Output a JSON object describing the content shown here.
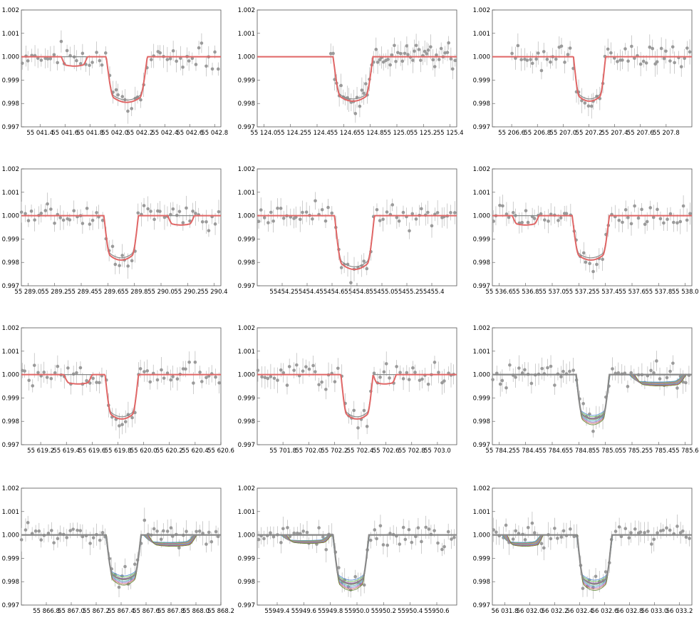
{
  "colors": {
    "data": "#9a9a9a",
    "model_single": "#e06666",
    "baseline": "#888888",
    "multi": [
      "#5b8fd6",
      "#6cbf5a",
      "#b05ab8",
      "#d4a23c",
      "#4fb3b3",
      "#8a6fd1",
      "#c86a6a",
      "#6a8a3c"
    ]
  },
  "chart_data": [
    {
      "type": "scatter",
      "title": "",
      "xlabel": "",
      "ylabel": "",
      "grid": false,
      "xlim": [
        55041.25,
        55042.85
      ],
      "ylim": [
        0.997,
        1.002
      ],
      "xticks": [
        "55 041.4",
        "55 041.6",
        "55 041.8",
        "55 042.0",
        "55 042.2",
        "55 042.4",
        "55 042.6",
        "55 042.8"
      ],
      "yticks": [
        "0.997",
        "0.998",
        "0.999",
        "1.000",
        "1.001",
        "1.002"
      ],
      "transit": {
        "t1": 55041.93,
        "t2": 55042.26,
        "depth": 0.00195
      },
      "secondary": {
        "t1": 55041.57,
        "t2": 55041.78,
        "depth": 0.0004
      },
      "n_models": 1
    },
    {
      "type": "scatter",
      "title": "",
      "xlabel": "",
      "ylabel": "",
      "grid": false,
      "xlim": [
        55123.95,
        55125.45
      ],
      "ylim": [
        0.997,
        1.002
      ],
      "xticks": [
        "55 124.0",
        "55 124.2",
        "55 124.4",
        "55 124.6",
        "55 124.8",
        "55 125.0",
        "55 125.2",
        "55 125.4"
      ],
      "yticks": [
        "0.997",
        "0.998",
        "0.999",
        "1.000",
        "1.001",
        "1.002"
      ],
      "data_xrange": [
        55124.5,
        55125.45
      ],
      "transit": {
        "t1": 55124.52,
        "t2": 55124.82,
        "depth": 0.0019
      },
      "n_models": 1
    },
    {
      "type": "scatter",
      "title": "",
      "xlabel": "",
      "ylabel": "",
      "grid": false,
      "xlim": [
        55206.45,
        55208.0
      ],
      "ylim": [
        0.997,
        1.002
      ],
      "xticks": [
        "55 206.6",
        "55 206.8",
        "55 207.0",
        "55 207.2",
        "55 207.4",
        "55 207.6",
        "55 207.8"
      ],
      "yticks": [
        "0.997",
        "0.998",
        "0.999",
        "1.000",
        "1.001",
        "1.002"
      ],
      "data_xrange": [
        55206.6,
        55208.0
      ],
      "transit": {
        "t1": 55207.08,
        "t2": 55207.33,
        "depth": 0.0019
      },
      "n_models": 1
    },
    {
      "type": "scatter",
      "title": "",
      "xlabel": "",
      "ylabel": "",
      "grid": false,
      "xlim": [
        55288.95,
        55290.45
      ],
      "ylim": [
        0.997,
        1.002
      ],
      "xticks": [
        "55 289.0",
        "55 289.2",
        "55 289.4",
        "55 289.6",
        "55 289.8",
        "55 290.0",
        "55 290.2",
        "55 290.4"
      ],
      "yticks": [
        "0.997",
        "0.998",
        "0.999",
        "1.000",
        "1.001",
        "1.002"
      ],
      "transit": {
        "t1": 55289.57,
        "t2": 55289.83,
        "depth": 0.0019
      },
      "secondary": {
        "t1": 55290.05,
        "t2": 55290.25,
        "depth": 0.0004
      },
      "n_models": 1
    },
    {
      "type": "scatter",
      "title": "",
      "xlabel": "",
      "ylabel": "",
      "grid": false,
      "xlim": [
        55454.0,
        55455.6
      ],
      "ylim": [
        0.997,
        1.002
      ],
      "xticks": [
        "55454.2",
        "55454.4",
        "55454.6",
        "55454.8",
        "55455.0",
        "55455.2",
        "55455.4"
      ],
      "yticks": [
        "0.997",
        "0.998",
        "0.999",
        "1.000",
        "1.001",
        "1.002"
      ],
      "transit": {
        "t1": 55454.62,
        "t2": 55454.94,
        "depth": 0.0023
      },
      "n_models": 1
    },
    {
      "type": "scatter",
      "title": "",
      "xlabel": "",
      "ylabel": "",
      "grid": false,
      "xlim": [
        55536.55,
        55538.05
      ],
      "ylim": [
        0.997,
        1.002
      ],
      "xticks": [
        "55 536.6",
        "55 536.8",
        "55 537.0",
        "55 537.2",
        "55 537.4",
        "55 537.6",
        "55 537.8",
        "55 538.0"
      ],
      "yticks": [
        "0.997",
        "0.998",
        "0.999",
        "1.000",
        "1.001",
        "1.002"
      ],
      "transit": {
        "t1": 55537.15,
        "t2": 55537.43,
        "depth": 0.0019
      },
      "secondary": {
        "t1": 55536.7,
        "t2": 55536.9,
        "depth": 0.0004
      },
      "n_models": 1
    },
    {
      "type": "scatter",
      "title": "",
      "xlabel": "",
      "ylabel": "",
      "grid": false,
      "xlim": [
        55619.05,
        55620.6
      ],
      "ylim": [
        0.997,
        1.002
      ],
      "xticks": [
        "55 619.2",
        "55 619.4",
        "55 619.6",
        "55 619.8",
        "55 620.0",
        "55 620.2",
        "55 620.4",
        "55 620.6"
      ],
      "yticks": [
        "0.997",
        "0.998",
        "0.999",
        "1.000",
        "1.001",
        "1.002"
      ],
      "transit": {
        "t1": 55619.7,
        "t2": 55619.96,
        "depth": 0.0019
      },
      "secondary": {
        "t1": 55619.38,
        "t2": 55619.6,
        "depth": 0.0004
      },
      "n_models": 1
    },
    {
      "type": "scatter",
      "title": "",
      "xlabel": "",
      "ylabel": "",
      "grid": false,
      "xlim": [
        55701.6,
        55703.15
      ],
      "ylim": [
        0.997,
        1.002
      ],
      "xticks": [
        "55 701.8",
        "55 702.0",
        "55 702.2",
        "55 702.4",
        "55 702.6",
        "55 702.8",
        "55 703.0"
      ],
      "yticks": [
        "0.997",
        "0.998",
        "0.999",
        "1.000",
        "1.001",
        "1.002"
      ],
      "transit": {
        "t1": 55702.25,
        "t2": 55702.5,
        "depth": 0.0019
      },
      "secondary": {
        "t1": 55702.5,
        "t2": 55702.68,
        "depth": 0.0004
      },
      "n_models": 1
    },
    {
      "type": "scatter",
      "title": "",
      "xlabel": "",
      "ylabel": "",
      "grid": false,
      "xlim": [
        55784.15,
        55785.65
      ],
      "ylim": [
        0.997,
        1.002
      ],
      "xticks": [
        "55 784.2",
        "55 784.4",
        "55 784.6",
        "55 784.8",
        "55 785.0",
        "55 785.2",
        "55 785.4",
        "55 785.6"
      ],
      "yticks": [
        "0.997",
        "0.998",
        "0.999",
        "1.000",
        "1.001",
        "1.002"
      ],
      "transit": {
        "t1": 55784.78,
        "t2": 55785.03,
        "depth": 0.0019
      },
      "secondary": {
        "t1": 55785.2,
        "t2": 55785.6,
        "depth": 0.0004
      },
      "n_models": 8
    },
    {
      "type": "scatter",
      "title": "",
      "xlabel": "",
      "ylabel": "",
      "grid": false,
      "xlim": [
        55866.6,
        55868.2
      ],
      "ylim": [
        0.997,
        1.002
      ],
      "xticks": [
        "55 866.8",
        "55 867.0",
        "55 867.2",
        "55 867.4",
        "55 867.6",
        "55 867.8",
        "55 868.0",
        "55 868.2"
      ],
      "yticks": [
        "0.997",
        "0.998",
        "0.999",
        "1.000",
        "1.001",
        "1.002"
      ],
      "transit": {
        "t1": 55867.28,
        "t2": 55867.56,
        "depth": 0.0019
      },
      "secondary": {
        "t1": 55867.6,
        "t2": 55868.0,
        "depth": 0.0004
      },
      "n_models": 8
    },
    {
      "type": "scatter",
      "title": "",
      "xlabel": "",
      "ylabel": "",
      "grid": false,
      "xlim": [
        55949.25,
        55950.75
      ],
      "ylim": [
        0.997,
        1.002
      ],
      "xticks": [
        "55949.4",
        "55949.6",
        "55949.8",
        "55950.0",
        "55950.2",
        "55950.4",
        "55950.6"
      ],
      "yticks": [
        "0.997",
        "0.998",
        "0.999",
        "1.000",
        "1.001",
        "1.002"
      ],
      "transit": {
        "t1": 55949.82,
        "t2": 55950.09,
        "depth": 0.0021
      },
      "secondary": {
        "t1": 55949.45,
        "t2": 55949.8,
        "depth": 0.0003
      },
      "n_models": 8
    },
    {
      "type": "scatter",
      "title": "",
      "xlabel": "",
      "ylabel": "",
      "grid": false,
      "xlim": [
        56031.7,
        56033.3
      ],
      "ylim": [
        0.997,
        1.002
      ],
      "xticks": [
        "56 031.8",
        "56 032.0",
        "56 032.2",
        "56 032.4",
        "56 032.6",
        "56 032.8",
        "56 033.0",
        "56 033.2"
      ],
      "yticks": [
        "0.997",
        "0.998",
        "0.999",
        "1.000",
        "1.001",
        "1.002"
      ],
      "transit": {
        "t1": 56032.38,
        "t2": 56032.66,
        "depth": 0.0021
      },
      "secondary": {
        "t1": 56031.8,
        "t2": 56032.1,
        "depth": 0.0004
      },
      "n_models": 8
    }
  ]
}
